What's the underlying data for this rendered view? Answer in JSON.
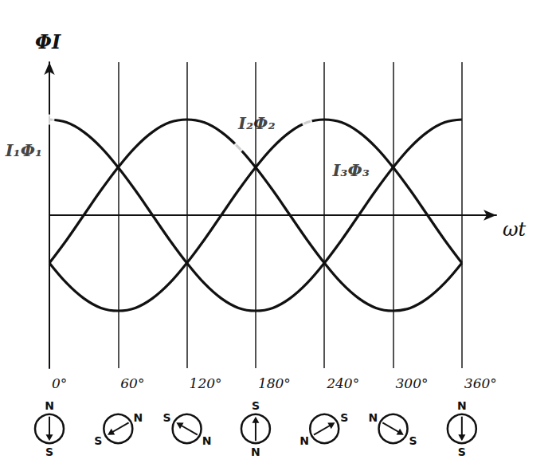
{
  "chart_data": {
    "type": "line",
    "x": [
      0,
      15,
      30,
      45,
      60,
      75,
      90,
      105,
      120,
      135,
      150,
      165,
      180,
      195,
      210,
      225,
      240,
      255,
      270,
      285,
      300,
      315,
      330,
      345,
      360
    ],
    "series": [
      {
        "color": "#111111",
        "values": [
          1,
          0.97,
          0.87,
          0.71,
          0.5,
          0.26,
          0,
          -0.26,
          -0.5,
          -0.71,
          -0.87,
          -0.97,
          -1,
          -0.97,
          -0.87,
          -0.71,
          -0.5,
          -0.26,
          0,
          0.26,
          0.5,
          0.71,
          0.87,
          0.97,
          1
        ]
      },
      {
        "color": "#111111",
        "values": [
          -0.5,
          -0.26,
          0,
          0.26,
          0.5,
          0.71,
          0.87,
          0.97,
          1,
          0.97,
          0.87,
          0.71,
          0.5,
          0.26,
          0,
          -0.26,
          -0.5,
          -0.71,
          -0.87,
          -0.97,
          -1,
          -0.97,
          -0.87,
          -0.71,
          -0.5
        ]
      },
      {
        "color": "#111111",
        "values": [
          -0.5,
          -0.71,
          -0.87,
          -0.97,
          -1,
          -0.97,
          -0.87,
          -0.71,
          -0.5,
          -0.26,
          0,
          0.26,
          0.5,
          0.71,
          0.87,
          0.97,
          1,
          0.97,
          0.87,
          0.71,
          0.5,
          0.26,
          0,
          -0.26,
          -0.5
        ]
      }
    ],
    "xlim": [
      0,
      390
    ],
    "xticks": [
      {
        "value": 0,
        "label": "0°"
      },
      {
        "value": 60,
        "label": "60°"
      },
      {
        "value": 120,
        "label": "120°"
      },
      {
        "value": 180,
        "label": "180°"
      },
      {
        "value": 240,
        "label": "240°"
      },
      {
        "value": 300,
        "label": "300°"
      },
      {
        "value": 360,
        "label": "360°"
      }
    ],
    "ylim": [
      -1.6,
      1.6
    ],
    "yticks": [],
    "tick_labels": "x",
    "grid": "x",
    "x_label": "ωt",
    "y_label": "ΦI",
    "annotations": [
      {
        "text": "I₁Φ₁",
        "x": 0,
        "y": 1
      },
      {
        "text": "I₂Φ₂",
        "x": 165,
        "y": 0.71
      },
      {
        "text": "I₃Φ₃",
        "x": 225,
        "y": 0.97
      }
    ],
    "poles": {
      "north": "N",
      "south": "S"
    }
  }
}
